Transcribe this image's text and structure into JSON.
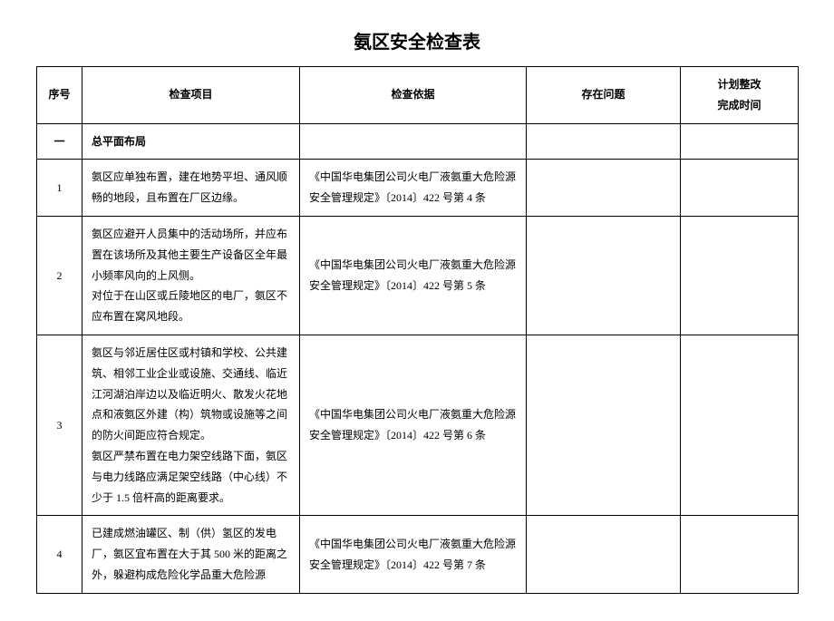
{
  "title": "氨区安全检查表",
  "columns": {
    "index": "序号",
    "item": "检查项目",
    "basis": "检查依据",
    "issue": "存在问题",
    "plan": "计划整改\n完成时间"
  },
  "section": {
    "num": "一",
    "name": "总平面布局"
  },
  "rows": [
    {
      "index": "1",
      "item": "氨区应单独布置，建在地势平坦、通风顺畅的地段，且布置在厂区边缘。",
      "basis": "《中国华电集团公司火电厂液氨重大危险源安全管理规定》〔2014〕422 号第 4 条",
      "issue": "",
      "plan": ""
    },
    {
      "index": "2",
      "item": "氨区应避开人员集中的活动场所，并应布置在该场所及其他主要生产设备区全年最小频率风向的上风侧。\n对位于在山区或丘陵地区的电厂，氨区不应布置在窝风地段。",
      "basis": "《中国华电集团公司火电厂液氨重大危险源安全管理规定》〔2014〕422 号第 5 条",
      "issue": "",
      "plan": ""
    },
    {
      "index": "3",
      "item": "氨区与邻近居住区或村镇和学校、公共建筑、相邻工业企业或设施、交通线、临近江河湖泊岸边以及临近明火、散发火花地点和液氨区外建（构）筑物或设施等之间的防火间距应符合规定。\n氨区严禁布置在电力架空线路下面，氨区与电力线路应满足架空线路（中心线）不少于 1.5 倍杆高的距离要求。",
      "basis": "《中国华电集团公司火电厂液氨重大危险源安全管理规定》〔2014〕422 号第 6 条",
      "issue": "",
      "plan": ""
    },
    {
      "index": "4",
      "item": "已建成燃油罐区、制（供）氢区的发电厂，氨区宜布置在大于其 500 米的距离之外，躲避构成危险化学品重大危险源",
      "basis": "《中国华电集团公司火电厂液氨重大危险源安全管理规定》〔2014〕422 号第 7 条",
      "issue": "",
      "plan": ""
    }
  ]
}
